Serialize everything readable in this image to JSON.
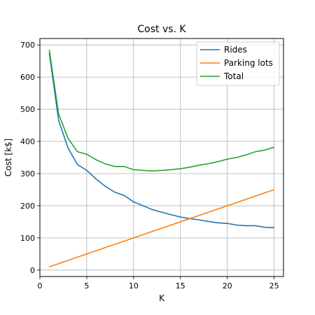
{
  "chart_data": {
    "type": "line",
    "title": "Cost vs. K",
    "xlabel": "K",
    "ylabel": "Cost [k$]",
    "xlim": [
      0,
      26
    ],
    "ylim": [
      -20,
      720
    ],
    "xticks": [
      0,
      5,
      10,
      15,
      20,
      25
    ],
    "yticks": [
      0,
      100,
      200,
      300,
      400,
      500,
      600,
      700
    ],
    "grid": true,
    "legend_position": "top-right",
    "x": [
      1,
      2,
      3,
      4,
      5,
      6,
      7,
      8,
      9,
      10,
      11,
      12,
      13,
      14,
      15,
      16,
      17,
      18,
      19,
      20,
      21,
      22,
      23,
      24,
      25
    ],
    "series": [
      {
        "name": "Rides",
        "color": "#1f77b4",
        "values": [
          675,
          465,
          380,
          328,
          310,
          283,
          260,
          242,
          232,
          212,
          200,
          188,
          180,
          172,
          165,
          160,
          156,
          151,
          147,
          145,
          140,
          138,
          138,
          133,
          132
        ]
      },
      {
        "name": "Parking lots",
        "color": "#ff7f0e",
        "values": [
          10,
          20,
          30,
          40,
          50,
          60,
          70,
          80,
          90,
          100,
          110,
          120,
          130,
          140,
          150,
          160,
          170,
          180,
          190,
          200,
          210,
          220,
          230,
          240,
          250
        ]
      },
      {
        "name": "Total",
        "color": "#2ca02c",
        "values": [
          685,
          485,
          410,
          368,
          360,
          343,
          330,
          322,
          322,
          312,
          310,
          308,
          310,
          312,
          315,
          320,
          326,
          331,
          337,
          345,
          350,
          358,
          368,
          373,
          382
        ]
      }
    ]
  }
}
